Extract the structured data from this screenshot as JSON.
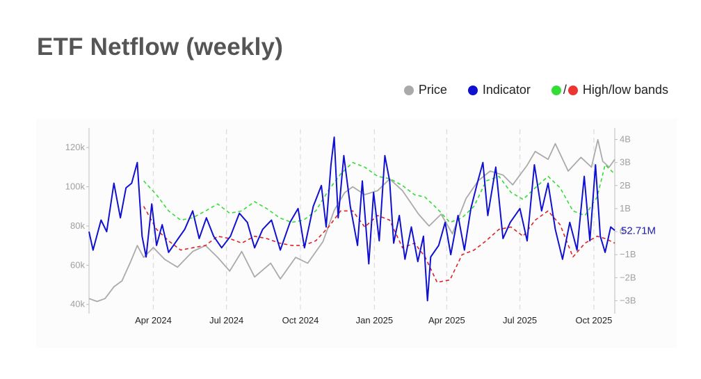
{
  "page": {
    "title": "ETF Netflow (weekly)"
  },
  "legend": {
    "price_label": "Price",
    "indicator_label": "Indicator",
    "bands_label": "High/low bands",
    "bands_separator": "/"
  },
  "colors": {
    "price": "#aaaaaa",
    "indicator": "#1010d0",
    "high_band": "#33dd33",
    "low_band": "#dd2222",
    "title": "#555555"
  },
  "chart_data": {
    "type": "line",
    "title": "ETF Netflow (weekly)",
    "x_range": [
      "2024-01-12",
      "2025-10-27"
    ],
    "x_ticks": [
      {
        "date": "2024-04-01",
        "label": "Apr 2024"
      },
      {
        "date": "2024-07-01",
        "label": "Jul 2024"
      },
      {
        "date": "2024-10-01",
        "label": "Oct 2024"
      },
      {
        "date": "2025-01-01",
        "label": "Jan 2025"
      },
      {
        "date": "2025-04-01",
        "label": "Apr 2025"
      },
      {
        "date": "2025-07-01",
        "label": "Jul 2025"
      },
      {
        "date": "2025-10-01",
        "label": "Oct 2025"
      }
    ],
    "y_left": {
      "range": [
        36000,
        130000
      ],
      "ticks": [
        40000,
        60000,
        80000,
        100000,
        120000
      ],
      "tick_labels": [
        "40k",
        "60k",
        "80k",
        "100k",
        "120k"
      ]
    },
    "y_right": {
      "range": [
        -3.5,
        4.5
      ],
      "ticks": [
        -3,
        -2,
        -1,
        0,
        1,
        2,
        3,
        4
      ],
      "tick_labels": [
        "−3B",
        "−2B",
        "−1B",
        "0",
        "1B",
        "2B",
        "3B",
        "4B"
      ]
    },
    "grid": "vertical dashed lines at x ticks",
    "last_value_label": "52.71M",
    "series": [
      {
        "name": "Price",
        "axis": "left",
        "points": [
          [
            "2024-01-12",
            43000
          ],
          [
            "2024-01-22",
            41500
          ],
          [
            "2024-02-01",
            43000
          ],
          [
            "2024-02-12",
            49000
          ],
          [
            "2024-02-22",
            52000
          ],
          [
            "2024-03-04",
            62000
          ],
          [
            "2024-03-12",
            70000
          ],
          [
            "2024-03-20",
            64000
          ],
          [
            "2024-04-01",
            69000
          ],
          [
            "2024-04-15",
            63000
          ],
          [
            "2024-05-01",
            59000
          ],
          [
            "2024-05-20",
            67000
          ],
          [
            "2024-06-05",
            70000
          ],
          [
            "2024-06-20",
            64000
          ],
          [
            "2024-07-05",
            57000
          ],
          [
            "2024-07-20",
            67000
          ],
          [
            "2024-08-05",
            54000
          ],
          [
            "2024-08-25",
            61000
          ],
          [
            "2024-09-06",
            53000
          ],
          [
            "2024-09-25",
            64000
          ],
          [
            "2024-10-10",
            61000
          ],
          [
            "2024-10-29",
            72000
          ],
          [
            "2024-11-12",
            88000
          ],
          [
            "2024-11-25",
            97000
          ],
          [
            "2024-12-05",
            100000
          ],
          [
            "2024-12-20",
            96000
          ],
          [
            "2025-01-05",
            98000
          ],
          [
            "2025-01-20",
            104000
          ],
          [
            "2025-02-05",
            98000
          ],
          [
            "2025-02-25",
            86000
          ],
          [
            "2025-03-10",
            80000
          ],
          [
            "2025-03-25",
            86000
          ],
          [
            "2025-04-08",
            76000
          ],
          [
            "2025-04-25",
            94000
          ],
          [
            "2025-05-10",
            103000
          ],
          [
            "2025-05-25",
            108000
          ],
          [
            "2025-06-10",
            106000
          ],
          [
            "2025-06-22",
            101000
          ],
          [
            "2025-07-10",
            111000
          ],
          [
            "2025-07-20",
            118000
          ],
          [
            "2025-08-05",
            114000
          ],
          [
            "2025-08-14",
            122000
          ],
          [
            "2025-08-30",
            108000
          ],
          [
            "2025-09-15",
            115000
          ],
          [
            "2025-09-28",
            110000
          ],
          [
            "2025-10-06",
            124000
          ],
          [
            "2025-10-12",
            113000
          ],
          [
            "2025-10-20",
            110000
          ],
          [
            "2025-10-27",
            114000
          ]
        ]
      },
      {
        "name": "Indicator",
        "axis": "right",
        "points": [
          [
            "2024-01-12",
            0.0
          ],
          [
            "2024-01-17",
            -0.8
          ],
          [
            "2024-01-27",
            0.5
          ],
          [
            "2024-02-03",
            0.0
          ],
          [
            "2024-02-12",
            2.1
          ],
          [
            "2024-02-20",
            0.6
          ],
          [
            "2024-02-27",
            1.9
          ],
          [
            "2024-03-05",
            2.1
          ],
          [
            "2024-03-12",
            3.0
          ],
          [
            "2024-03-18",
            -0.2
          ],
          [
            "2024-03-23",
            -1.1
          ],
          [
            "2024-03-30",
            1.2
          ],
          [
            "2024-04-05",
            -0.6
          ],
          [
            "2024-04-12",
            0.3
          ],
          [
            "2024-04-20",
            -0.9
          ],
          [
            "2024-04-30",
            -0.4
          ],
          [
            "2024-05-10",
            0.1
          ],
          [
            "2024-05-20",
            0.9
          ],
          [
            "2024-05-28",
            -0.3
          ],
          [
            "2024-06-06",
            0.6
          ],
          [
            "2024-06-15",
            -0.2
          ],
          [
            "2024-06-25",
            -0.7
          ],
          [
            "2024-07-06",
            -0.2
          ],
          [
            "2024-07-17",
            0.8
          ],
          [
            "2024-07-27",
            0.4
          ],
          [
            "2024-08-05",
            -0.7
          ],
          [
            "2024-08-15",
            0.1
          ],
          [
            "2024-08-26",
            0.5
          ],
          [
            "2024-09-06",
            -0.8
          ],
          [
            "2024-09-18",
            0.4
          ],
          [
            "2024-09-28",
            1.0
          ],
          [
            "2024-10-06",
            -0.7
          ],
          [
            "2024-10-17",
            1.1
          ],
          [
            "2024-10-27",
            2.0
          ],
          [
            "2024-11-02",
            0.2
          ],
          [
            "2024-11-08",
            2.9
          ],
          [
            "2024-11-12",
            4.1
          ],
          [
            "2024-11-17",
            0.6
          ],
          [
            "2024-11-24",
            3.3
          ],
          [
            "2024-12-02",
            1.1
          ],
          [
            "2024-12-11",
            -0.6
          ],
          [
            "2024-12-17",
            2.2
          ],
          [
            "2024-12-25",
            -1.4
          ],
          [
            "2024-12-31",
            1.7
          ],
          [
            "2025-01-07",
            -0.4
          ],
          [
            "2025-01-14",
            3.3
          ],
          [
            "2025-01-20",
            2.2
          ],
          [
            "2025-01-25",
            -0.5
          ],
          [
            "2025-02-01",
            0.7
          ],
          [
            "2025-02-08",
            -1.2
          ],
          [
            "2025-02-16",
            0.2
          ],
          [
            "2025-02-24",
            -1.3
          ],
          [
            "2025-03-03",
            -0.2
          ],
          [
            "2025-03-08",
            -3.0
          ],
          [
            "2025-03-12",
            -1.1
          ],
          [
            "2025-03-22",
            -0.6
          ],
          [
            "2025-03-30",
            0.4
          ],
          [
            "2025-04-06",
            -1.0
          ],
          [
            "2025-04-15",
            0.7
          ],
          [
            "2025-04-23",
            -0.8
          ],
          [
            "2025-05-01",
            1.0
          ],
          [
            "2025-05-09",
            2.1
          ],
          [
            "2025-05-16",
            3.0
          ],
          [
            "2025-05-22",
            0.7
          ],
          [
            "2025-06-01",
            2.8
          ],
          [
            "2025-06-10",
            -0.3
          ],
          [
            "2025-06-19",
            0.4
          ],
          [
            "2025-07-01",
            1.0
          ],
          [
            "2025-07-10",
            -0.4
          ],
          [
            "2025-07-19",
            2.9
          ],
          [
            "2025-07-28",
            0.9
          ],
          [
            "2025-08-05",
            2.1
          ],
          [
            "2025-08-14",
            0.1
          ],
          [
            "2025-08-23",
            -1.2
          ],
          [
            "2025-09-01",
            0.4
          ],
          [
            "2025-09-10",
            -0.8
          ],
          [
            "2025-09-19",
            2.4
          ],
          [
            "2025-09-26",
            -0.4
          ],
          [
            "2025-10-03",
            2.9
          ],
          [
            "2025-10-09",
            -0.2
          ],
          [
            "2025-10-15",
            -0.9
          ],
          [
            "2025-10-22",
            0.2
          ],
          [
            "2025-10-27",
            0.05
          ]
        ]
      },
      {
        "name": "High band",
        "axis": "right",
        "points": [
          [
            "2024-03-20",
            2.2
          ],
          [
            "2024-04-05",
            1.6
          ],
          [
            "2024-04-20",
            0.9
          ],
          [
            "2024-05-05",
            0.5
          ],
          [
            "2024-05-20",
            0.6
          ],
          [
            "2024-06-05",
            0.9
          ],
          [
            "2024-06-20",
            1.2
          ],
          [
            "2024-07-05",
            0.8
          ],
          [
            "2024-07-20",
            0.9
          ],
          [
            "2024-08-05",
            1.3
          ],
          [
            "2024-08-20",
            1.0
          ],
          [
            "2024-09-05",
            0.6
          ],
          [
            "2024-09-20",
            0.4
          ],
          [
            "2024-10-05",
            0.5
          ],
          [
            "2024-10-20",
            0.9
          ],
          [
            "2024-11-05",
            1.8
          ],
          [
            "2024-11-20",
            2.5
          ],
          [
            "2024-12-05",
            3.0
          ],
          [
            "2024-12-20",
            2.8
          ],
          [
            "2025-01-05",
            2.4
          ],
          [
            "2025-01-20",
            2.3
          ],
          [
            "2025-02-05",
            2.0
          ],
          [
            "2025-02-20",
            1.6
          ],
          [
            "2025-03-05",
            1.5
          ],
          [
            "2025-03-20",
            1.0
          ],
          [
            "2025-04-05",
            0.4
          ],
          [
            "2025-04-20",
            0.6
          ],
          [
            "2025-05-05",
            1.1
          ],
          [
            "2025-05-20",
            2.2
          ],
          [
            "2025-06-05",
            2.4
          ],
          [
            "2025-06-20",
            1.7
          ],
          [
            "2025-07-05",
            1.4
          ],
          [
            "2025-07-20",
            1.9
          ],
          [
            "2025-08-05",
            2.4
          ],
          [
            "2025-08-20",
            1.9
          ],
          [
            "2025-09-05",
            0.9
          ],
          [
            "2025-09-20",
            0.7
          ],
          [
            "2025-10-05",
            1.5
          ],
          [
            "2025-10-15",
            2.9
          ],
          [
            "2025-10-27",
            2.5
          ]
        ]
      },
      {
        "name": "Low band",
        "axis": "right",
        "points": [
          [
            "2024-03-20",
            1.1
          ],
          [
            "2024-04-05",
            0.1
          ],
          [
            "2024-04-20",
            -0.4
          ],
          [
            "2024-05-05",
            -0.8
          ],
          [
            "2024-05-20",
            -0.7
          ],
          [
            "2024-06-05",
            -0.6
          ],
          [
            "2024-06-20",
            -0.2
          ],
          [
            "2024-07-05",
            -0.3
          ],
          [
            "2024-07-20",
            -0.5
          ],
          [
            "2024-08-05",
            -0.2
          ],
          [
            "2024-08-20",
            -0.3
          ],
          [
            "2024-09-05",
            -0.5
          ],
          [
            "2024-09-20",
            -0.6
          ],
          [
            "2024-10-05",
            -0.6
          ],
          [
            "2024-10-20",
            -0.4
          ],
          [
            "2024-11-05",
            0.2
          ],
          [
            "2024-11-20",
            0.9
          ],
          [
            "2024-12-05",
            0.9
          ],
          [
            "2024-12-20",
            0.2
          ],
          [
            "2025-01-05",
            0.7
          ],
          [
            "2025-01-20",
            0.5
          ],
          [
            "2025-02-05",
            -0.7
          ],
          [
            "2025-02-20",
            -0.5
          ],
          [
            "2025-03-05",
            -1.1
          ],
          [
            "2025-03-20",
            -2.2
          ],
          [
            "2025-04-05",
            -2.1
          ],
          [
            "2025-04-20",
            -1.0
          ],
          [
            "2025-05-05",
            -0.8
          ],
          [
            "2025-05-20",
            -0.4
          ],
          [
            "2025-06-05",
            0.1
          ],
          [
            "2025-06-20",
            0.2
          ],
          [
            "2025-07-05",
            -0.2
          ],
          [
            "2025-07-20",
            0.5
          ],
          [
            "2025-08-05",
            0.9
          ],
          [
            "2025-08-20",
            0.3
          ],
          [
            "2025-09-05",
            -1.1
          ],
          [
            "2025-09-20",
            -0.5
          ],
          [
            "2025-10-05",
            -0.2
          ],
          [
            "2025-10-15",
            -0.3
          ],
          [
            "2025-10-27",
            -0.5
          ]
        ]
      }
    ]
  }
}
